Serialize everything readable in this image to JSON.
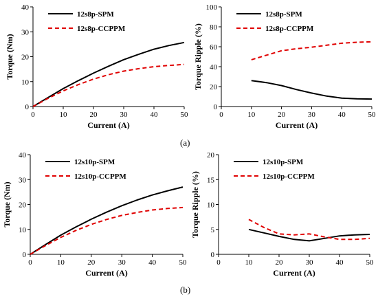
{
  "captions": {
    "a": "(a)",
    "b": "(b)"
  },
  "colors": {
    "spm": "#000000",
    "ccppm": "#e00000"
  },
  "chart_data": [
    {
      "type": "line",
      "panel": "a-torque",
      "xlabel": "Current (A)",
      "ylabel": "Torque (Nm)",
      "xlim": [
        0,
        50
      ],
      "ylim": [
        0,
        40
      ],
      "xticks": [
        0,
        10,
        20,
        30,
        40,
        50
      ],
      "yticks": [
        0,
        10,
        20,
        30,
        40
      ],
      "legend": "top-left",
      "series": [
        {
          "name": "12s8p-SPM",
          "style": "solid",
          "x": [
            0,
            5,
            10,
            15,
            20,
            25,
            30,
            35,
            40,
            45,
            50
          ],
          "y": [
            0,
            3.6,
            7.2,
            10.4,
            13.4,
            16.2,
            18.8,
            21.0,
            23.0,
            24.5,
            25.7
          ]
        },
        {
          "name": "12s8p-CCPPM",
          "style": "dashed",
          "x": [
            0,
            5,
            10,
            15,
            20,
            25,
            30,
            35,
            40,
            45,
            50
          ],
          "y": [
            0,
            3.3,
            6.3,
            8.8,
            11.0,
            12.8,
            14.2,
            15.2,
            16.0,
            16.5,
            16.9
          ]
        }
      ]
    },
    {
      "type": "line",
      "panel": "a-ripple",
      "xlabel": "Current (A)",
      "ylabel": "Torque Ripple (%)",
      "xlim": [
        0,
        50
      ],
      "ylim": [
        0,
        100
      ],
      "xticks": [
        0,
        10,
        20,
        30,
        40,
        50
      ],
      "yticks": [
        0,
        20,
        40,
        60,
        80,
        100
      ],
      "legend": "top-left",
      "series": [
        {
          "name": "12s8p-SPM",
          "style": "solid",
          "x": [
            10,
            15,
            20,
            25,
            30,
            35,
            40,
            45,
            50
          ],
          "y": [
            26,
            24,
            21,
            17,
            13.5,
            10.5,
            8.5,
            7.8,
            7.5
          ]
        },
        {
          "name": "12s8p-CCPPM",
          "style": "dashed",
          "x": [
            10,
            15,
            20,
            25,
            30,
            35,
            40,
            45,
            50
          ],
          "y": [
            47,
            51.5,
            56,
            58,
            59.5,
            61.5,
            63.5,
            64.5,
            65
          ]
        }
      ]
    },
    {
      "type": "line",
      "panel": "b-torque",
      "xlabel": "Current (A)",
      "ylabel": "Torque (Nm)",
      "xlim": [
        0,
        50
      ],
      "ylim": [
        0,
        40
      ],
      "xticks": [
        0,
        10,
        20,
        30,
        40,
        50
      ],
      "yticks": [
        0,
        10,
        20,
        30,
        40
      ],
      "legend": "top-left",
      "series": [
        {
          "name": "12s10p-SPM",
          "style": "solid",
          "x": [
            0,
            5,
            10,
            15,
            20,
            25,
            30,
            35,
            40,
            45,
            50
          ],
          "y": [
            0,
            3.9,
            7.7,
            11.0,
            14.1,
            16.9,
            19.5,
            21.8,
            23.8,
            25.5,
            27.0
          ]
        },
        {
          "name": "12s10p-CCPPM",
          "style": "dashed",
          "x": [
            0,
            5,
            10,
            15,
            20,
            25,
            30,
            35,
            40,
            45,
            50
          ],
          "y": [
            0,
            3.5,
            6.8,
            9.6,
            12.0,
            14.0,
            15.6,
            16.8,
            17.8,
            18.4,
            18.8
          ]
        }
      ]
    },
    {
      "type": "line",
      "panel": "b-ripple",
      "xlabel": "Current (A)",
      "ylabel": "Torque Ripple (%)",
      "xlim": [
        0,
        50
      ],
      "ylim": [
        0,
        20
      ],
      "xticks": [
        0,
        10,
        20,
        30,
        40,
        50
      ],
      "yticks": [
        0,
        5,
        10,
        15,
        20
      ],
      "legend": "top-left",
      "series": [
        {
          "name": "12s10p-SPM",
          "style": "solid",
          "x": [
            10,
            15,
            20,
            25,
            30,
            35,
            40,
            45,
            50
          ],
          "y": [
            5.0,
            4.3,
            3.6,
            3.0,
            2.7,
            3.2,
            3.7,
            3.9,
            4.0
          ]
        },
        {
          "name": "12s10p-CCPPM",
          "style": "dashed",
          "x": [
            10,
            15,
            20,
            25,
            30,
            35,
            40,
            45,
            50
          ],
          "y": [
            7.0,
            5.4,
            4.1,
            3.9,
            4.1,
            3.5,
            3.0,
            3.0,
            3.2
          ]
        }
      ]
    }
  ]
}
